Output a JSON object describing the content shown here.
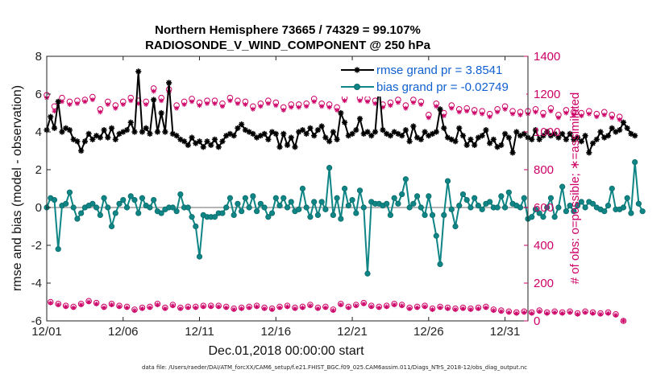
{
  "chart_data": {
    "type": "line",
    "title": "Northern Hemisphere 73665 / 74329 = 99.107%",
    "subtitle": "RADIOSONDE_V_WIND_COMPONENT @ 250 hPa",
    "xlabel": "Dec.01,2018 00:00:00 start",
    "ylabel": "rmse and bias (model - observation)",
    "ylabel_right": "# of obs: o=possible; ∗=assimilated",
    "footer": "data file: /Users/raeder/DAI/ATM_forcXX/CAM6_setup/f.e21.FHIST_BGC.f09_025.CAM6assim.011/Diags_NTrS_2018-12/obs_diag_output.nc",
    "xlim": [
      0,
      31.5
    ],
    "ylim": [
      -6,
      8
    ],
    "ylim_right": [
      0,
      1400
    ],
    "x_ticks": [
      0,
      5,
      10,
      15,
      20,
      25,
      30
    ],
    "x_tick_labels": [
      "12/01",
      "12/06",
      "12/11",
      "12/16",
      "12/21",
      "12/26",
      "12/31"
    ],
    "y_ticks": [
      -6,
      -4,
      -2,
      0,
      2,
      4,
      6,
      8
    ],
    "y_tick_labels": [
      "-6",
      "-4",
      "-2",
      "0",
      "2",
      "4",
      "6",
      "8"
    ],
    "y_right_ticks": [
      0,
      200,
      400,
      600,
      800,
      1000,
      1200,
      1400
    ],
    "y_right_tick_labels": [
      "0",
      "200",
      "400",
      "600",
      "800",
      "1000",
      "1200",
      "1400"
    ],
    "time_step_days": 0.25,
    "series": [
      {
        "name": "rmse grand pr = 3.8541",
        "axis": "left",
        "color": "#000000",
        "marker": "asterisk",
        "values": [
          4.1,
          4.8,
          4.2,
          5.6,
          4.0,
          4.2,
          4.1,
          3.6,
          3.5,
          3.0,
          3.5,
          3.9,
          3.6,
          3.8,
          3.7,
          4.1,
          3.7,
          4.2,
          3.6,
          3.9,
          4.0,
          4.1,
          4.5,
          4.0,
          7.2,
          4.0,
          4.2,
          3.9,
          5.7,
          4.0,
          5.0,
          4.0,
          6.6,
          3.9,
          3.8,
          3.6,
          3.5,
          3.3,
          3.7,
          3.4,
          3.5,
          3.2,
          3.5,
          3.3,
          3.6,
          3.2,
          3.5,
          3.8,
          3.9,
          3.8,
          4.2,
          4.4,
          4.1,
          4.0,
          3.9,
          3.7,
          3.8,
          3.9,
          3.6,
          4.0,
          3.9,
          3.2,
          3.9,
          3.3,
          3.7,
          3.2,
          4.0,
          4.1,
          3.9,
          4.2,
          3.8,
          4.1,
          4.3,
          3.7,
          3.5,
          4.0,
          3.6,
          5.0,
          4.5,
          3.8,
          3.9,
          4.1,
          4.7,
          3.9,
          4.0,
          3.8,
          4.0,
          6.5,
          4.1,
          3.9,
          3.8,
          4.0,
          3.9,
          3.8,
          4.1,
          3.5,
          4.3,
          3.7,
          3.6,
          4.0,
          3.8,
          3.9,
          4.0,
          5.2,
          4.2,
          3.7,
          3.6,
          3.5,
          4.2,
          3.8,
          3.3,
          3.6,
          3.3,
          3.7,
          3.8,
          4.1,
          3.4,
          3.6,
          3.2,
          3.3,
          3.9,
          3.7,
          2.9,
          4.0,
          3.8,
          3.9,
          3.7,
          3.6,
          4.1,
          3.6,
          3.8,
          4.0,
          3.8,
          3.9,
          3.7,
          3.9,
          3.6,
          3.9,
          3.6,
          3.7,
          3.5,
          3.8,
          2.9,
          3.4,
          3.6,
          4.0,
          3.7,
          3.8,
          4.2,
          4.0,
          4.1,
          4.5,
          4.2,
          3.9,
          3.8
        ]
      },
      {
        "name": "bias grand pr = -0.02749",
        "axis": "left",
        "color": "#0f8585",
        "marker": "circle",
        "values": [
          0.0,
          0.5,
          0.4,
          -2.2,
          0.1,
          0.2,
          0.8,
          0.0,
          -0.6,
          -0.3,
          0.0,
          0.1,
          0.2,
          0.0,
          -0.4,
          0.5,
          0.0,
          -1.0,
          -0.3,
          0.2,
          0.4,
          0.0,
          0.6,
          0.4,
          -0.3,
          0.5,
          0.1,
          0.0,
          0.4,
          -0.2,
          -0.3,
          -0.1,
          0.0,
          0.0,
          -0.2,
          0.7,
          0.0,
          0.0,
          -0.5,
          -1.0,
          -2.6,
          -0.4,
          -0.5,
          -0.5,
          -0.5,
          -0.3,
          -0.3,
          0.0,
          0.5,
          -0.4,
          0.2,
          -0.2,
          0.5,
          0.0,
          0.6,
          -0.2,
          0.2,
          0.0,
          -0.5,
          -0.3,
          0.5,
          0.1,
          0.5,
          0.0,
          0.3,
          -0.2,
          -0.1,
          1.0,
          0.0,
          -0.5,
          0.3,
          -0.4,
          0.3,
          -0.1,
          2.1,
          -0.4,
          0.5,
          -0.6,
          1.0,
          0.1,
          0.4,
          -0.3,
          0.9,
          0.0,
          -3.5,
          0.3,
          0.2,
          0.2,
          0.1,
          0.2,
          -0.4,
          0.5,
          0.2,
          0.7,
          1.5,
          0.0,
          0.2,
          0.6,
          0.0,
          -0.4,
          0.6,
          -0.4,
          -1.5,
          -3.0,
          -0.4,
          1.4,
          -0.1,
          -1.0,
          0.1,
          0.7,
          0.4,
          0.0,
          0.5,
          0.1,
          -0.1,
          0.2,
          0.3,
          0.0,
          0.0,
          0.6,
          0.0,
          0.8,
          0.2,
          0.1,
          0.0,
          0.5,
          -0.6,
          -0.5,
          -0.1,
          -0.3,
          -0.5,
          0.0,
          0.5,
          -0.5,
          0.0,
          1.1,
          -0.2,
          0.1,
          -0.2,
          0.1,
          0.3,
          0.0,
          0.3,
          0.2,
          0.0,
          -0.1,
          -0.2,
          0.1,
          1.0,
          -0.1,
          -0.1,
          0.0,
          0.5,
          -0.3,
          2.4,
          0.2,
          -0.2
        ]
      },
      {
        "name": "obs possible",
        "axis": "right",
        "color": "#cc0066",
        "marker": "circle-open",
        "values": [
          1195,
          100,
          1135,
          90,
          1180,
          80,
          1160,
          75,
          1165,
          90,
          1170,
          105,
          1185,
          95,
          1120,
          75,
          1160,
          90,
          1140,
          80,
          1160,
          75,
          1180,
          60,
          1165,
          70,
          1160,
          75,
          1230,
          90,
          1180,
          70,
          1225,
          85,
          1140,
          70,
          1160,
          75,
          1175,
          75,
          1155,
          80,
          1165,
          80,
          1165,
          80,
          1150,
          75,
          1180,
          65,
          1165,
          70,
          1160,
          75,
          1135,
          80,
          1150,
          70,
          1165,
          65,
          1155,
          75,
          1130,
          80,
          1145,
          70,
          1145,
          75,
          1150,
          85,
          1175,
          70,
          1150,
          75,
          1145,
          60,
          1130,
          90,
          1180,
          75,
          1250,
          85,
          1180,
          95,
          1175,
          80,
          1165,
          75,
          1145,
          80,
          1155,
          90,
          1170,
          85,
          1140,
          70,
          1170,
          75,
          1160,
          80,
          1090,
          65,
          1150,
          75,
          1100,
          70,
          1140,
          65,
          1120,
          70,
          1125,
          65,
          1115,
          70,
          1110,
          75,
          1095,
          60,
          1120,
          55,
          1135,
          50,
          1110,
          45,
          1105,
          50,
          1110,
          45,
          1120,
          55,
          1100,
          45,
          1125,
          50,
          1090,
          45,
          1115,
          50,
          1105,
          40,
          1100,
          50,
          1110,
          45,
          1095,
          40,
          1105,
          45,
          1090,
          35,
          1080,
          0
        ]
      },
      {
        "name": "obs assimilated",
        "axis": "right",
        "color": "#cc0066",
        "marker": "asterisk",
        "values": [
          1180,
          95,
          1110,
          85,
          1160,
          75,
          1145,
          70,
          1150,
          85,
          1160,
          100,
          1170,
          90,
          1105,
          70,
          1145,
          85,
          1125,
          75,
          1145,
          70,
          1165,
          55,
          1150,
          65,
          1145,
          70,
          1215,
          85,
          1165,
          65,
          1210,
          80,
          1125,
          65,
          1145,
          70,
          1160,
          70,
          1140,
          75,
          1150,
          75,
          1150,
          75,
          1135,
          70,
          1165,
          60,
          1150,
          65,
          1145,
          70,
          1120,
          75,
          1135,
          65,
          1150,
          60,
          1140,
          70,
          1115,
          75,
          1130,
          65,
          1130,
          70,
          1135,
          80,
          1160,
          65,
          1135,
          70,
          1130,
          55,
          1115,
          85,
          1165,
          70,
          1235,
          80,
          1165,
          90,
          1160,
          75,
          1150,
          70,
          1130,
          75,
          1140,
          85,
          1155,
          80,
          1125,
          65,
          1155,
          70,
          1145,
          75,
          1075,
          60,
          1135,
          70,
          1085,
          65,
          1125,
          60,
          1105,
          65,
          1110,
          60,
          1100,
          65,
          1095,
          70,
          1080,
          55,
          1105,
          50,
          1120,
          45,
          1095,
          40,
          1090,
          45,
          1095,
          40,
          1105,
          50,
          1085,
          40,
          1110,
          45,
          1075,
          40,
          1100,
          45,
          1090,
          35,
          1085,
          45,
          1095,
          40,
          1080,
          35,
          1090,
          40,
          1075,
          30,
          1065,
          0
        ]
      }
    ],
    "zero_line": 0
  }
}
